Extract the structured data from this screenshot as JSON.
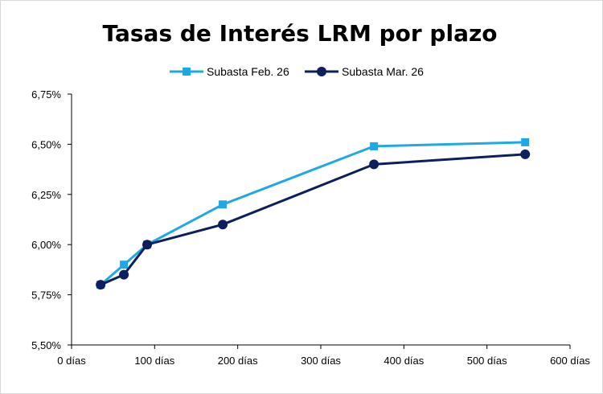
{
  "chart_data": {
    "type": "line",
    "title": "Tasas de Interés LRM por plazo",
    "xlabel": "",
    "ylabel": "",
    "xlim": [
      0,
      600
    ],
    "ylim": [
      5.5,
      6.75
    ],
    "x_ticks": [
      0,
      100,
      200,
      300,
      400,
      500,
      600
    ],
    "x_tick_labels": [
      "0 días",
      "100 días",
      "200 días",
      "300 días",
      "400 días",
      "500 días",
      "600 días"
    ],
    "y_ticks": [
      5.5,
      5.75,
      6.0,
      6.25,
      6.5,
      6.75
    ],
    "y_tick_labels": [
      "5,50%",
      "5,75%",
      "6,00%",
      "6,25%",
      "6,50%",
      "6,75%"
    ],
    "grid": false,
    "legend_position": "top-center",
    "series": [
      {
        "name": "Subasta Feb. 26",
        "color": "#1fa8e6",
        "marker": "square",
        "x": [
          35,
          63,
          91,
          182,
          364,
          546
        ],
        "values": [
          5.8,
          5.9,
          6.0,
          6.2,
          6.49,
          6.51
        ]
      },
      {
        "name": "Subasta Mar. 26",
        "color": "#0d1f5c",
        "marker": "circle",
        "x": [
          35,
          63,
          91,
          182,
          364,
          546
        ],
        "values": [
          5.8,
          5.85,
          6.0,
          6.1,
          6.4,
          6.45
        ]
      }
    ]
  }
}
